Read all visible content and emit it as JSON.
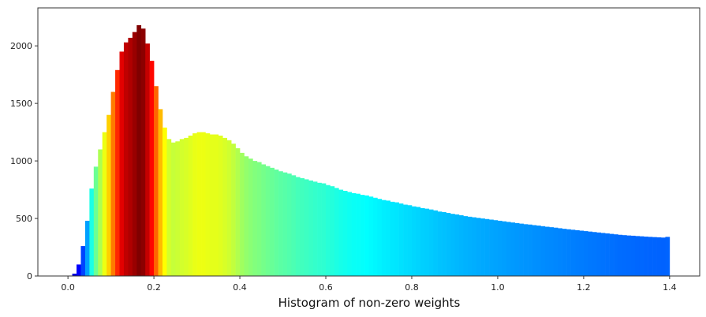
{
  "chart_data": {
    "type": "bar",
    "title": "",
    "xlabel": "Histogram of non-zero weights",
    "ylabel": "",
    "xlim": [
      -0.07,
      1.47
    ],
    "ylim": [
      0,
      2330
    ],
    "grid": false,
    "legend": "none",
    "x_ticks": [
      "0.0",
      "0.2",
      "0.4",
      "0.6",
      "0.8",
      "1.0",
      "1.2",
      "1.4"
    ],
    "y_ticks": [
      "0",
      "500",
      "1000",
      "1500",
      "2000"
    ],
    "x_tick_values": [
      0.0,
      0.2,
      0.4,
      0.6,
      0.8,
      1.0,
      1.2,
      1.4
    ],
    "y_tick_values": [
      0,
      500,
      1000,
      1500,
      2000
    ],
    "bin_width": 0.01,
    "colormap": "jet",
    "x": [
      0.005,
      0.015,
      0.025,
      0.035,
      0.045,
      0.055,
      0.065,
      0.075,
      0.085,
      0.095,
      0.105,
      0.115,
      0.125,
      0.135,
      0.145,
      0.155,
      0.165,
      0.175,
      0.185,
      0.195,
      0.205,
      0.215,
      0.225,
      0.235,
      0.245,
      0.255,
      0.265,
      0.275,
      0.285,
      0.295,
      0.305,
      0.315,
      0.325,
      0.335,
      0.345,
      0.355,
      0.365,
      0.375,
      0.385,
      0.395,
      0.405,
      0.415,
      0.425,
      0.435,
      0.445,
      0.455,
      0.465,
      0.475,
      0.485,
      0.495,
      0.505,
      0.515,
      0.525,
      0.535,
      0.545,
      0.555,
      0.565,
      0.575,
      0.585,
      0.595,
      0.605,
      0.615,
      0.625,
      0.635,
      0.645,
      0.655,
      0.665,
      0.675,
      0.685,
      0.695,
      0.705,
      0.715,
      0.725,
      0.735,
      0.745,
      0.755,
      0.765,
      0.775,
      0.785,
      0.795,
      0.805,
      0.815,
      0.825,
      0.835,
      0.845,
      0.855,
      0.865,
      0.875,
      0.885,
      0.895,
      0.905,
      0.915,
      0.925,
      0.935,
      0.945,
      0.955,
      0.965,
      0.975,
      0.985,
      0.995,
      1.005,
      1.015,
      1.025,
      1.035,
      1.045,
      1.055,
      1.065,
      1.075,
      1.085,
      1.095,
      1.105,
      1.115,
      1.125,
      1.135,
      1.145,
      1.155,
      1.165,
      1.175,
      1.185,
      1.195,
      1.205,
      1.215,
      1.225,
      1.235,
      1.245,
      1.255,
      1.265,
      1.275,
      1.285,
      1.295,
      1.305,
      1.315,
      1.325,
      1.335,
      1.345,
      1.355,
      1.365,
      1.375,
      1.385,
      1.395
    ],
    "values": [
      0,
      20,
      100,
      260,
      480,
      760,
      950,
      1100,
      1250,
      1400,
      1600,
      1790,
      1950,
      2030,
      2070,
      2120,
      2180,
      2150,
      2020,
      1870,
      1650,
      1450,
      1290,
      1190,
      1160,
      1170,
      1190,
      1200,
      1220,
      1240,
      1250,
      1250,
      1240,
      1230,
      1230,
      1220,
      1200,
      1180,
      1150,
      1110,
      1070,
      1040,
      1020,
      1000,
      990,
      970,
      955,
      940,
      925,
      910,
      900,
      890,
      875,
      860,
      850,
      840,
      830,
      820,
      810,
      805,
      790,
      780,
      765,
      750,
      740,
      730,
      720,
      715,
      705,
      700,
      690,
      680,
      670,
      660,
      655,
      645,
      640,
      630,
      620,
      615,
      605,
      600,
      590,
      585,
      578,
      570,
      560,
      555,
      548,
      540,
      535,
      528,
      520,
      515,
      510,
      505,
      500,
      495,
      490,
      485,
      480,
      475,
      470,
      465,
      460,
      455,
      450,
      447,
      442,
      438,
      433,
      428,
      424,
      420,
      415,
      410,
      406,
      402,
      398,
      394,
      390,
      386,
      382,
      378,
      374,
      370,
      366,
      362,
      358,
      355,
      352,
      350,
      347,
      345,
      342,
      340,
      338,
      336,
      334,
      340
    ]
  }
}
